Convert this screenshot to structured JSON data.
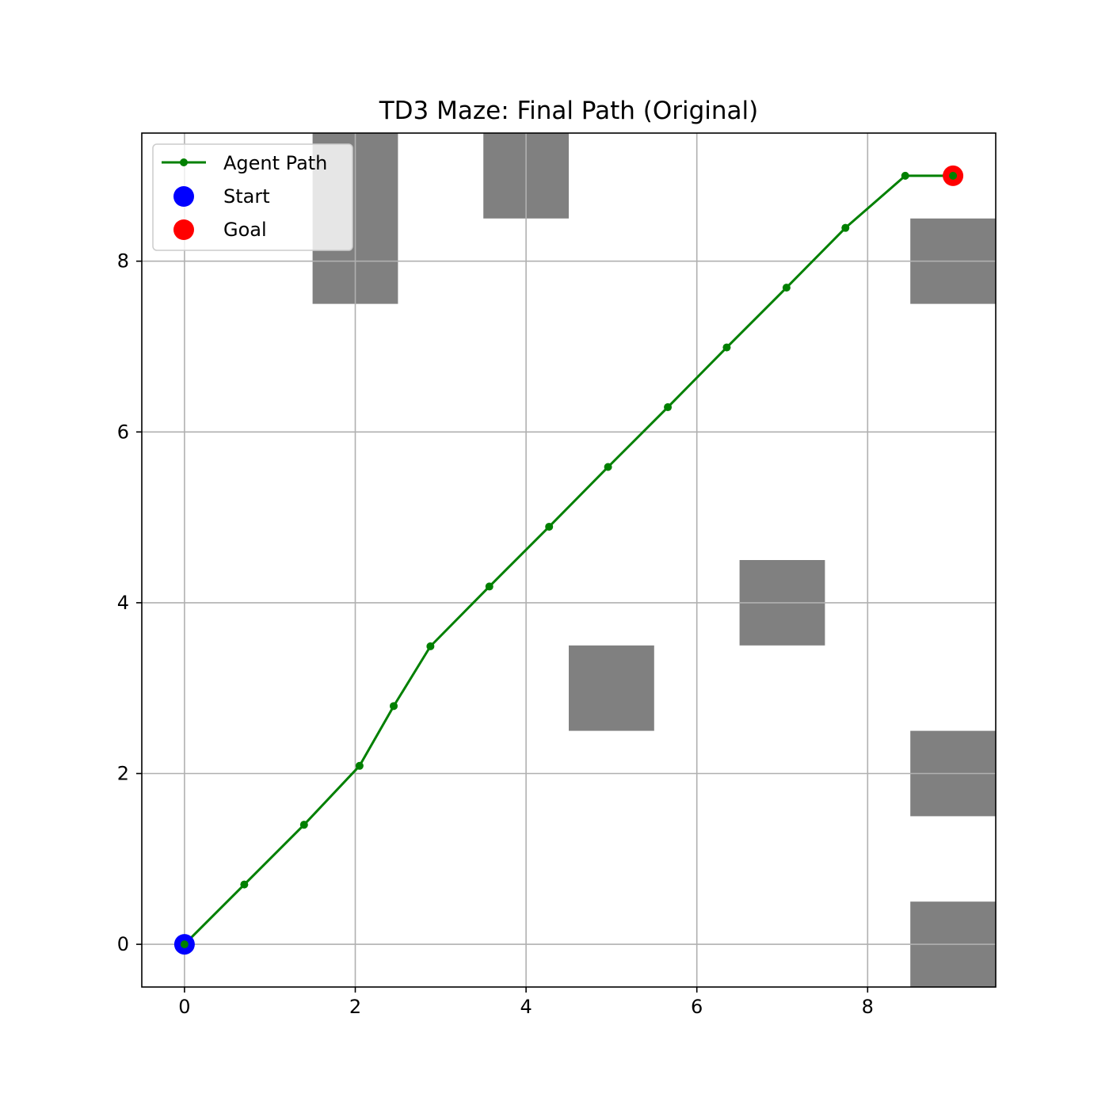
{
  "chart_data": {
    "type": "line",
    "title": "TD3 Maze: Final Path (Original)",
    "xlabel": "",
    "ylabel": "",
    "xlim": [
      -0.5,
      9.5
    ],
    "ylim": [
      -0.5,
      9.5
    ],
    "xticks": [
      0,
      2,
      4,
      6,
      8
    ],
    "yticks": [
      0,
      2,
      4,
      6,
      8
    ],
    "x_tick_labels": [
      "0",
      "2",
      "4",
      "6",
      "8"
    ],
    "y_tick_labels": [
      "0",
      "2",
      "4",
      "6",
      "8"
    ],
    "grid": true,
    "legend_position": "top-left",
    "obstacles": [
      {
        "x": 1.5,
        "y": 7.5,
        "width": 1,
        "height": 2
      },
      {
        "x": 3.5,
        "y": 8.5,
        "width": 1,
        "height": 1
      },
      {
        "x": 8.5,
        "y": 7.5,
        "width": 1,
        "height": 1
      },
      {
        "x": 6.5,
        "y": 3.5,
        "width": 1,
        "height": 1
      },
      {
        "x": 4.5,
        "y": 2.5,
        "width": 1,
        "height": 1
      },
      {
        "x": 8.5,
        "y": 1.5,
        "width": 1,
        "height": 1
      },
      {
        "x": 8.5,
        "y": -0.5,
        "width": 1,
        "height": 1
      }
    ],
    "obstacle_color": "#808080",
    "series": [
      {
        "name": "Agent Path",
        "color": "#008000",
        "x": [
          0,
          0.7,
          1.4,
          2.05,
          2.45,
          2.88,
          3.57,
          4.27,
          4.96,
          5.66,
          6.35,
          7.05,
          7.74,
          8.44,
          9.0
        ],
        "y": [
          0,
          0.7,
          1.4,
          2.09,
          2.79,
          3.49,
          4.19,
          4.89,
          5.59,
          6.29,
          6.99,
          7.69,
          8.39,
          9.0,
          9.0
        ]
      }
    ],
    "start": {
      "name": "Start",
      "x": 0,
      "y": 0,
      "color": "#0000ff"
    },
    "goal": {
      "name": "Goal",
      "x": 9,
      "y": 9,
      "color": "#ff0000"
    }
  }
}
